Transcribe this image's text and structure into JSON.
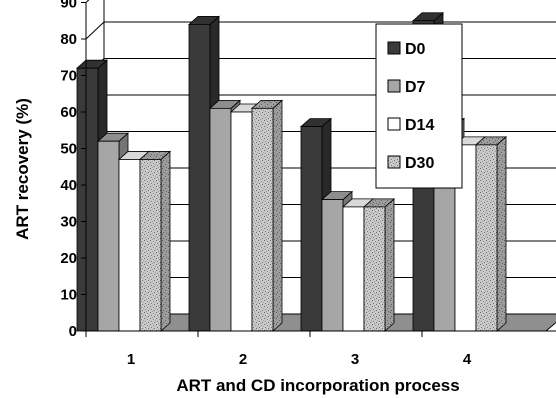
{
  "chart_data": {
    "type": "bar",
    "title": "",
    "xlabel": "ART and CD incorporation process",
    "ylabel": "ART recovery (%)",
    "categories": [
      "1",
      "2",
      "3",
      "4"
    ],
    "ylim": [
      0,
      90
    ],
    "yticks": [
      "0",
      "10",
      "20",
      "30",
      "40",
      "50",
      "60",
      "70",
      "80",
      "90"
    ],
    "grid": true,
    "legend_position": "top-right",
    "series": [
      {
        "name": "D0",
        "values": [
          72,
          84,
          56,
          85
        ],
        "color": "#3a3a3a",
        "pattern": "solid"
      },
      {
        "name": "D7",
        "values": [
          52,
          61,
          36,
          56
        ],
        "color": "#a6a6a6",
        "pattern": "solid"
      },
      {
        "name": "D14",
        "values": [
          47,
          60,
          34,
          51
        ],
        "color": "#ffffff",
        "pattern": "solid"
      },
      {
        "name": "D30",
        "values": [
          47,
          61,
          34,
          51
        ],
        "color": "#c4c4c4",
        "pattern": "speckled"
      }
    ]
  }
}
